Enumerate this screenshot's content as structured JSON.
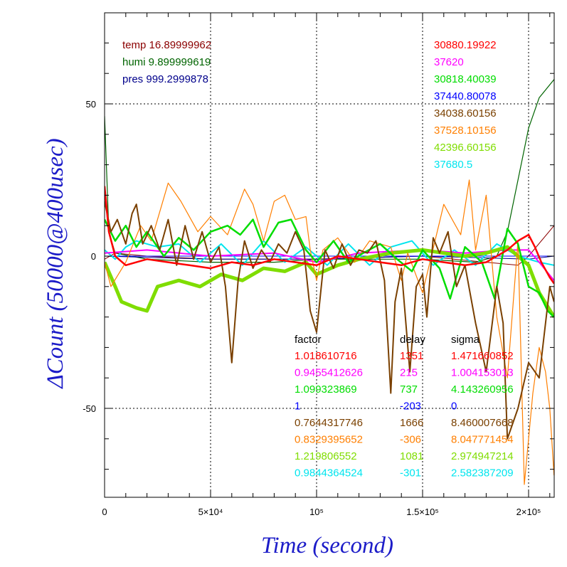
{
  "chart_data": {
    "type": "line",
    "xlabel": "Time (second)",
    "ylabel": "ΔCount (50000@400usec)",
    "xlim": [
      0,
      212000
    ],
    "ylim": [
      -80,
      80
    ],
    "grid": true,
    "x_ticks": [
      {
        "value": 0,
        "label": "0"
      },
      {
        "value": 50000,
        "label": "5×10⁴"
      },
      {
        "value": 100000,
        "label": "10⁵"
      },
      {
        "value": 150000,
        "label": "1.5×10⁵"
      },
      {
        "value": 200000,
        "label": "2×10⁵"
      }
    ],
    "y_ticks": [
      {
        "value": 50,
        "label": "50"
      },
      {
        "value": 0,
        "label": "0"
      },
      {
        "value": -50,
        "label": "-50"
      }
    ],
    "env_legend": [
      {
        "text": "temp 16.89999962",
        "color": "#8b0000"
      },
      {
        "text": "humi 9.899999619",
        "color": "#006400"
      },
      {
        "text": "pres 999.2999878",
        "color": "#00008b"
      }
    ],
    "value_legend": [
      {
        "text": "30880.19922",
        "color": "#ff0000"
      },
      {
        "text": "37620",
        "color": "#ff00ff"
      },
      {
        "text": "30818.40039",
        "color": "#00dd00"
      },
      {
        "text": "37440.80078",
        "color": "#0000ff"
      },
      {
        "text": "34038.60156",
        "color": "#7a4000"
      },
      {
        "text": "37528.10156",
        "color": "#ff7f00"
      },
      {
        "text": "42396.60156",
        "color": "#7fdd00"
      },
      {
        "text": "37680.5",
        "color": "#00e5ee"
      }
    ],
    "table": {
      "headers": [
        "factor",
        "delay",
        "sigma"
      ],
      "rows": [
        {
          "color": "#ff0000",
          "cells": [
            "1.018610716",
            "1351",
            "1.471660852"
          ]
        },
        {
          "color": "#ff00ff",
          "cells": [
            "0.9455412626",
            "215",
            "1.004153013"
          ]
        },
        {
          "color": "#00dd00",
          "cells": [
            "1.099323869",
            "737",
            "4.143260956"
          ]
        },
        {
          "color": "#0000ff",
          "cells": [
            "1",
            "-203",
            "0"
          ]
        },
        {
          "color": "#7a4000",
          "cells": [
            "0.7644317746",
            "1666",
            "8.460007668"
          ]
        },
        {
          "color": "#ff7f00",
          "cells": [
            "0.8329395652",
            "-306",
            "8.047771454"
          ]
        },
        {
          "color": "#7fdd00",
          "cells": [
            "1.219806552",
            "1081",
            "2.974947214"
          ]
        },
        {
          "color": "#00e5ee",
          "cells": [
            "0.9844364524",
            "-301",
            "2.582387209"
          ]
        }
      ]
    },
    "series": [
      {
        "color": "#006400",
        "width": 1.2,
        "x": [
          0,
          2000,
          5000,
          20000,
          50000,
          80000,
          100000,
          120000,
          150000,
          175000,
          185000,
          190000,
          195000,
          200000,
          205000,
          212000
        ],
        "y": [
          46,
          8,
          1,
          -1,
          -2,
          -2,
          -1,
          -1,
          -1,
          -2,
          0,
          8,
          25,
          42,
          52,
          58
        ]
      },
      {
        "color": "#8b0000",
        "width": 1.0,
        "x": [
          0,
          5000,
          20000,
          50000,
          100000,
          150000,
          180000,
          195000,
          200000,
          212000
        ],
        "y": [
          -1,
          1,
          0,
          -1,
          -1,
          0,
          -2,
          -3,
          0,
          10
        ]
      },
      {
        "color": "#00008b",
        "width": 1.0,
        "x": [
          0,
          50000,
          100000,
          150000,
          200000,
          212000
        ],
        "y": [
          0,
          -1,
          -1,
          0,
          -1,
          0
        ]
      },
      {
        "color": "#0000ff",
        "width": 1.0,
        "x": [
          0,
          212000
        ],
        "y": [
          0,
          0
        ]
      },
      {
        "color": "#00e5ee",
        "width": 2.0,
        "x": [
          0,
          5000,
          10000,
          15000,
          25000,
          35000,
          45000,
          55000,
          65000,
          75000,
          85000,
          95000,
          105000,
          115000,
          125000,
          135000,
          145000,
          155000,
          165000,
          175000,
          185000,
          195000,
          205000,
          212000
        ],
        "y": [
          2,
          -1,
          3,
          5,
          3,
          4,
          -2,
          4,
          -3,
          5,
          -2,
          3,
          -3,
          4,
          -3,
          3,
          5,
          -3,
          2,
          -3,
          4,
          0,
          -2,
          -3
        ]
      },
      {
        "color": "#ff00ff",
        "width": 2.0,
        "x": [
          0,
          20000,
          50000,
          80000,
          100000,
          120000,
          150000,
          170000,
          190000,
          200000,
          205000,
          212000
        ],
        "y": [
          1,
          2,
          0,
          1,
          -2,
          1,
          2,
          1,
          2,
          2,
          -2,
          -8
        ]
      },
      {
        "color": "#7fdd00",
        "width": 5.0,
        "x": [
          0,
          5000,
          8000,
          15000,
          20000,
          25000,
          35000,
          45000,
          55000,
          65000,
          75000,
          85000,
          95000,
          100000,
          110000,
          120000,
          135000,
          150000,
          160000,
          170000,
          180000,
          190000,
          200000,
          205000,
          212000
        ],
        "y": [
          -2,
          -10,
          -15,
          -17,
          -18,
          -10,
          -8,
          -10,
          -6,
          -8,
          -4,
          -5,
          -2,
          -6,
          -3,
          -1,
          1,
          2,
          1,
          0,
          1,
          3,
          -3,
          -12,
          -20
        ]
      },
      {
        "color": "#ff7f00",
        "width": 1.2,
        "x": [
          0,
          3000,
          10000,
          17000,
          22000,
          30000,
          36000,
          44000,
          50000,
          58000,
          66000,
          70000,
          75000,
          80000,
          85000,
          90000,
          95000,
          97000,
          100000,
          103000,
          110000,
          118000,
          125000,
          135000,
          140000,
          143000,
          150000,
          160000,
          168000,
          172000,
          175000,
          180000,
          185000,
          190000,
          195000,
          198000,
          202000,
          205000,
          208000,
          210000,
          212000
        ],
        "y": [
          -2,
          -10,
          -2,
          10,
          5,
          24,
          18,
          8,
          13,
          7,
          22,
          17,
          5,
          18,
          20,
          12,
          13,
          2,
          -8,
          2,
          6,
          -2,
          5,
          3,
          -8,
          1,
          -12,
          17,
          7,
          25,
          2,
          20,
          -20,
          -40,
          5,
          -75,
          -45,
          -30,
          -38,
          -50,
          -72
        ]
      },
      {
        "color": "#00dd00",
        "width": 2.5,
        "x": [
          0,
          5000,
          10000,
          15000,
          20000,
          28000,
          35000,
          42000,
          50000,
          58000,
          64000,
          70000,
          75000,
          82000,
          88000,
          95000,
          100000,
          108000,
          115000,
          122000,
          130000,
          138000,
          145000,
          150000,
          158000,
          163000,
          170000,
          178000,
          184000,
          190000,
          195000,
          200000,
          205000,
          209000,
          212000
        ],
        "y": [
          12,
          5,
          10,
          3,
          8,
          0,
          6,
          2,
          8,
          10,
          7,
          12,
          3,
          11,
          12,
          2,
          -2,
          5,
          -2,
          1,
          4,
          -1,
          -5,
          2,
          -4,
          -14,
          3,
          -2,
          -14,
          9,
          4,
          -10,
          -12,
          -18,
          -20
        ]
      },
      {
        "color": "#7a4000",
        "width": 2.0,
        "x": [
          0,
          3000,
          6000,
          10000,
          13000,
          15000,
          18000,
          22000,
          26000,
          30000,
          34000,
          38000,
          42000,
          46000,
          50000,
          54000,
          57000,
          60000,
          63000,
          66000,
          70000,
          74000,
          78000,
          82000,
          86000,
          90000,
          94000,
          97000,
          100000,
          104000,
          108000,
          112000,
          116000,
          120000,
          124000,
          128000,
          132000,
          135000,
          137000,
          140000,
          144000,
          147000,
          150000,
          152000,
          155000,
          158000,
          162000,
          166000,
          170000,
          175000,
          180000,
          185000,
          188000,
          190000,
          195000,
          200000,
          205000,
          210000,
          212000
        ],
        "y": [
          18,
          8,
          12,
          4,
          14,
          17,
          4,
          10,
          2,
          12,
          -3,
          10,
          -1,
          8,
          -2,
          3,
          -10,
          -35,
          -8,
          5,
          -4,
          2,
          -2,
          4,
          1,
          8,
          2,
          -18,
          -25,
          2,
          -4,
          4,
          -3,
          2,
          1,
          5,
          -8,
          -45,
          -15,
          -4,
          -38,
          -10,
          -6,
          -20,
          6,
          1,
          8,
          -10,
          -3,
          -22,
          -38,
          -10,
          -22,
          -60,
          -50,
          -35,
          -40,
          -10,
          -15
        ]
      },
      {
        "color": "#ff0000",
        "width": 2.5,
        "x": [
          0,
          2000,
          5000,
          10000,
          20000,
          30000,
          40000,
          50000,
          60000,
          70000,
          80000,
          90000,
          100000,
          110000,
          120000,
          130000,
          140000,
          150000,
          160000,
          170000,
          180000,
          190000,
          195000,
          200000,
          203000,
          206000,
          210000,
          212000
        ],
        "y": [
          23,
          8,
          0,
          -3,
          -1,
          -2,
          -3,
          -4,
          -2,
          -3,
          -1,
          -2,
          -3,
          0,
          -1,
          -2,
          -3,
          -1,
          -2,
          -3,
          -2,
          2,
          5,
          7,
          3,
          -2,
          -7,
          -9
        ]
      }
    ]
  }
}
